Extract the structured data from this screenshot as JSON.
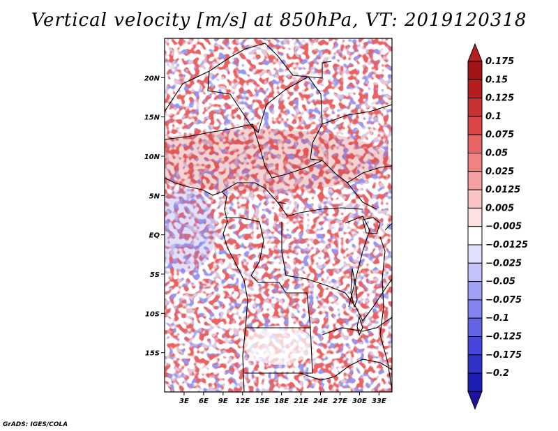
{
  "title": "Vertical velocity [m/s] at 850hPa, VT: 2019120318",
  "credit": "GrADS: IGES/COLA",
  "map": {
    "lon_range": [
      0,
      35
    ],
    "lat_range": [
      -20,
      25
    ],
    "projection": "latlon",
    "lat_ticks": [
      {
        "value": 20,
        "label": "20N"
      },
      {
        "value": 15,
        "label": "15N"
      },
      {
        "value": 10,
        "label": "10N"
      },
      {
        "value": 5,
        "label": "5N"
      },
      {
        "value": 0,
        "label": "EQ"
      },
      {
        "value": -5,
        "label": "5S"
      },
      {
        "value": -10,
        "label": "10S"
      },
      {
        "value": -15,
        "label": "15S"
      }
    ],
    "lon_ticks": [
      {
        "value": 3,
        "label": "3E"
      },
      {
        "value": 6,
        "label": "6E"
      },
      {
        "value": 9,
        "label": "9E"
      },
      {
        "value": 12,
        "label": "12E"
      },
      {
        "value": 15,
        "label": "15E"
      },
      {
        "value": 18,
        "label": "18E"
      },
      {
        "value": 21,
        "label": "21E"
      },
      {
        "value": 24,
        "label": "24E"
      },
      {
        "value": 27,
        "label": "27E"
      },
      {
        "value": 30,
        "label": "30E"
      },
      {
        "value": 33,
        "label": "33E"
      }
    ]
  },
  "colorbar": {
    "levels": [
      {
        "label": "0.175",
        "color": "#a01414"
      },
      {
        "label": "0.15",
        "color": "#b41e1e"
      },
      {
        "label": "0.125",
        "color": "#c83232"
      },
      {
        "label": "0.1",
        "color": "#dc4646"
      },
      {
        "label": "0.075",
        "color": "#e66464"
      },
      {
        "label": "0.05",
        "color": "#f08282"
      },
      {
        "label": "0.025",
        "color": "#f5a0a0"
      },
      {
        "label": "0.0125",
        "color": "#fac3c3"
      },
      {
        "label": "0.005",
        "color": "#fde1e1"
      },
      {
        "label": "−0.005",
        "color": "#ffffff"
      },
      {
        "label": "−0.0125",
        "color": "#e1e1fd"
      },
      {
        "label": "−0.025",
        "color": "#c3c3fa"
      },
      {
        "label": "−0.05",
        "color": "#a0a0f5"
      },
      {
        "label": "−0.075",
        "color": "#8282f0"
      },
      {
        "label": "−0.1",
        "color": "#6464e6"
      },
      {
        "label": "−0.125",
        "color": "#4646dc"
      },
      {
        "label": "−0.175",
        "color": "#3232c8"
      },
      {
        "label": "−0.2",
        "color": "#1e1eb4"
      }
    ],
    "over_color": "#b41e1e",
    "under_color": "#1e14a0"
  }
}
